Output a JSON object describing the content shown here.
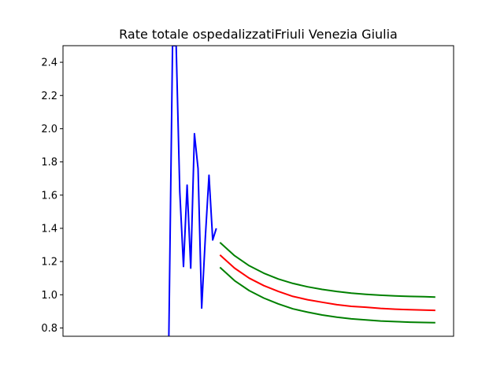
{
  "chart_data": {
    "type": "line",
    "title": "Rate totale ospedalizzatiFriuli Venezia Giulia",
    "xlabel": "",
    "ylabel": "",
    "ylim": [
      0.75,
      2.5
    ],
    "xlim": [
      -29,
      78
    ],
    "yticks": [
      0.8,
      1.0,
      1.2,
      1.4,
      1.6,
      1.8,
      2.0,
      2.2,
      2.4
    ],
    "ytick_labels": [
      "0.8",
      "1.0",
      "1.2",
      "1.4",
      "1.6",
      "1.8",
      "2.0",
      "2.2",
      "2.4"
    ],
    "grid": false,
    "series": [
      {
        "color": "#0000ff",
        "x": [
          0,
          1,
          2,
          3,
          4,
          5,
          6,
          7,
          8,
          9,
          10,
          11,
          12,
          13
        ],
        "y": [
          0.75,
          2.5,
          2.5,
          1.62,
          1.17,
          1.66,
          1.16,
          1.97,
          1.76,
          0.92,
          1.35,
          1.72,
          1.33,
          1.4
        ]
      },
      {
        "color": "#ff0000",
        "x": [
          14,
          18,
          22,
          26,
          30,
          34,
          38,
          42,
          46,
          50,
          54,
          58,
          62,
          66,
          70,
          73
        ],
        "y": [
          1.24,
          1.16,
          1.1,
          1.055,
          1.02,
          0.99,
          0.97,
          0.955,
          0.94,
          0.93,
          0.925,
          0.918,
          0.913,
          0.91,
          0.908,
          0.906
        ]
      },
      {
        "color": "#008000",
        "x": [
          14,
          18,
          22,
          26,
          30,
          34,
          38,
          42,
          46,
          50,
          54,
          58,
          62,
          66,
          70,
          73
        ],
        "y": [
          1.315,
          1.235,
          1.175,
          1.13,
          1.095,
          1.068,
          1.048,
          1.032,
          1.02,
          1.01,
          1.003,
          0.997,
          0.993,
          0.99,
          0.988,
          0.986
        ]
      },
      {
        "color": "#008000",
        "x": [
          14,
          18,
          22,
          26,
          30,
          34,
          38,
          42,
          46,
          50,
          54,
          58,
          62,
          66,
          70,
          73
        ],
        "y": [
          1.165,
          1.085,
          1.025,
          0.98,
          0.945,
          0.915,
          0.895,
          0.878,
          0.865,
          0.855,
          0.848,
          0.842,
          0.838,
          0.835,
          0.833,
          0.832
        ]
      }
    ]
  }
}
